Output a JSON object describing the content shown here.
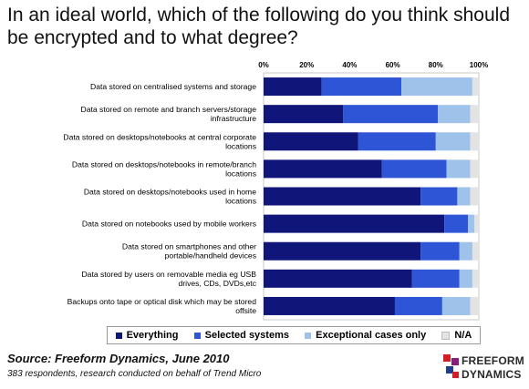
{
  "title": "In an ideal world, which of the following do you think should be encrypted and to what degree?",
  "chart_data": {
    "type": "bar",
    "orientation": "horizontal",
    "stacked": true,
    "x_ticks": [
      "0%",
      "20%",
      "40%",
      "60%",
      "80%",
      "100%"
    ],
    "xlim": [
      0,
      100
    ],
    "categories": [
      "Data stored on centralised systems and storage",
      "Data stored on remote and branch servers/storage infrastructure",
      "Data stored on desktops/notebooks at central corporate locations",
      "Data stored on desktops/notebooks in remote/branch locations",
      "Data stored on desktops/notebooks used in home locations",
      "Data stored on notebooks used by mobile workers",
      "Data stored on smartphones and other portable/handheld devices",
      "Data stored by users on removable media eg USB drives, CDs, DVDs,etc",
      "Backups onto tape or optical disk which may be stored offsite"
    ],
    "label_lines": [
      [
        "Data stored on centralised systems and storage"
      ],
      [
        "Data stored on remote and branch servers/storage",
        "infrastructure"
      ],
      [
        "Data stored on desktops/notebooks at central corporate",
        "locations"
      ],
      [
        "Data stored on desktops/notebooks in remote/branch",
        "locations"
      ],
      [
        "Data stored on desktops/notebooks used in home",
        "locations"
      ],
      [
        "Data stored on notebooks used by mobile workers"
      ],
      [
        "Data stored on smartphones and other",
        "portable/handheld devices"
      ],
      [
        "Data stored by users on removable media eg USB",
        "drives, CDs, DVDs,etc"
      ],
      [
        "Backups onto tape or optical disk which may be stored",
        "offsite"
      ]
    ],
    "series": [
      {
        "name": "Everything",
        "color": "#10157a",
        "values": [
          27,
          37,
          44,
          55,
          73,
          84,
          73,
          69,
          61
        ]
      },
      {
        "name": "Selected systems",
        "color": "#2e55d6",
        "values": [
          37,
          44,
          36,
          30,
          17,
          11,
          18,
          22,
          22
        ]
      },
      {
        "name": "Exceptional cases only",
        "color": "#9fc2ea",
        "values": [
          33,
          15,
          16,
          11,
          6,
          3,
          6,
          6,
          13
        ]
      },
      {
        "name": "N/A",
        "color": "#e3e3e3",
        "values": [
          3,
          4,
          4,
          4,
          4,
          2,
          3,
          3,
          4
        ]
      }
    ],
    "legend_position": "bottom",
    "grid": false
  },
  "source": "Source: Freeform Dynamics, June 2010",
  "note": "383 respondents, research conducted on behalf of Trend Micro",
  "logo": {
    "line1": "FREEFORM",
    "line2": "DYNAMICS",
    "colors": [
      "#d21f26",
      "#8a1c7c",
      "#1f3e8f"
    ]
  }
}
